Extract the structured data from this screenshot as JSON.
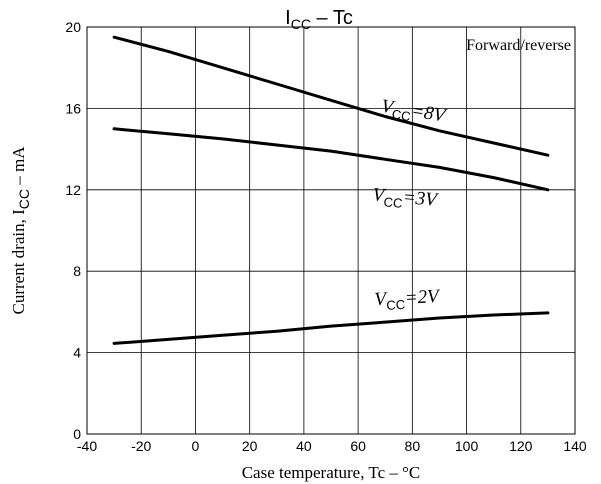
{
  "chart_data": {
    "type": "line",
    "title_main": "I",
    "title_sub": "CC",
    "title_rest": " – Tc",
    "xlabel": "Case temperature, Tc – °C",
    "ylabel_main": "Current drain, I",
    "ylabel_sub": "CC",
    "ylabel_rest": " – mA",
    "xlim": [
      -40,
      140
    ],
    "ylim": [
      0,
      20
    ],
    "xticks": [
      -40,
      -20,
      0,
      20,
      40,
      60,
      80,
      100,
      120,
      140
    ],
    "yticks": [
      0,
      4,
      8,
      12,
      16,
      20
    ],
    "grid": true,
    "annotation": "Forward/reverse",
    "series": [
      {
        "name": "VCC=8V",
        "label_main": "V",
        "label_sub": "CC",
        "label_rest": "=8V",
        "x": [
          -30,
          -10,
          10,
          30,
          50,
          70,
          90,
          110,
          130
        ],
        "y": [
          19.5,
          18.8,
          18.0,
          17.2,
          16.4,
          15.6,
          14.9,
          14.3,
          13.7
        ]
      },
      {
        "name": "VCC=3V",
        "label_main": "V",
        "label_sub": "CC",
        "label_rest": "=3V",
        "x": [
          -30,
          -10,
          10,
          30,
          50,
          70,
          90,
          110,
          130
        ],
        "y": [
          15.0,
          14.75,
          14.5,
          14.2,
          13.9,
          13.5,
          13.1,
          12.6,
          12.0
        ]
      },
      {
        "name": "VCC=2V",
        "label_main": "V",
        "label_sub": "CC",
        "label_rest": "=2V",
        "x": [
          -30,
          -10,
          10,
          30,
          50,
          70,
          90,
          110,
          130
        ],
        "y": [
          4.45,
          4.65,
          4.85,
          5.05,
          5.3,
          5.5,
          5.7,
          5.85,
          5.95
        ]
      }
    ]
  }
}
